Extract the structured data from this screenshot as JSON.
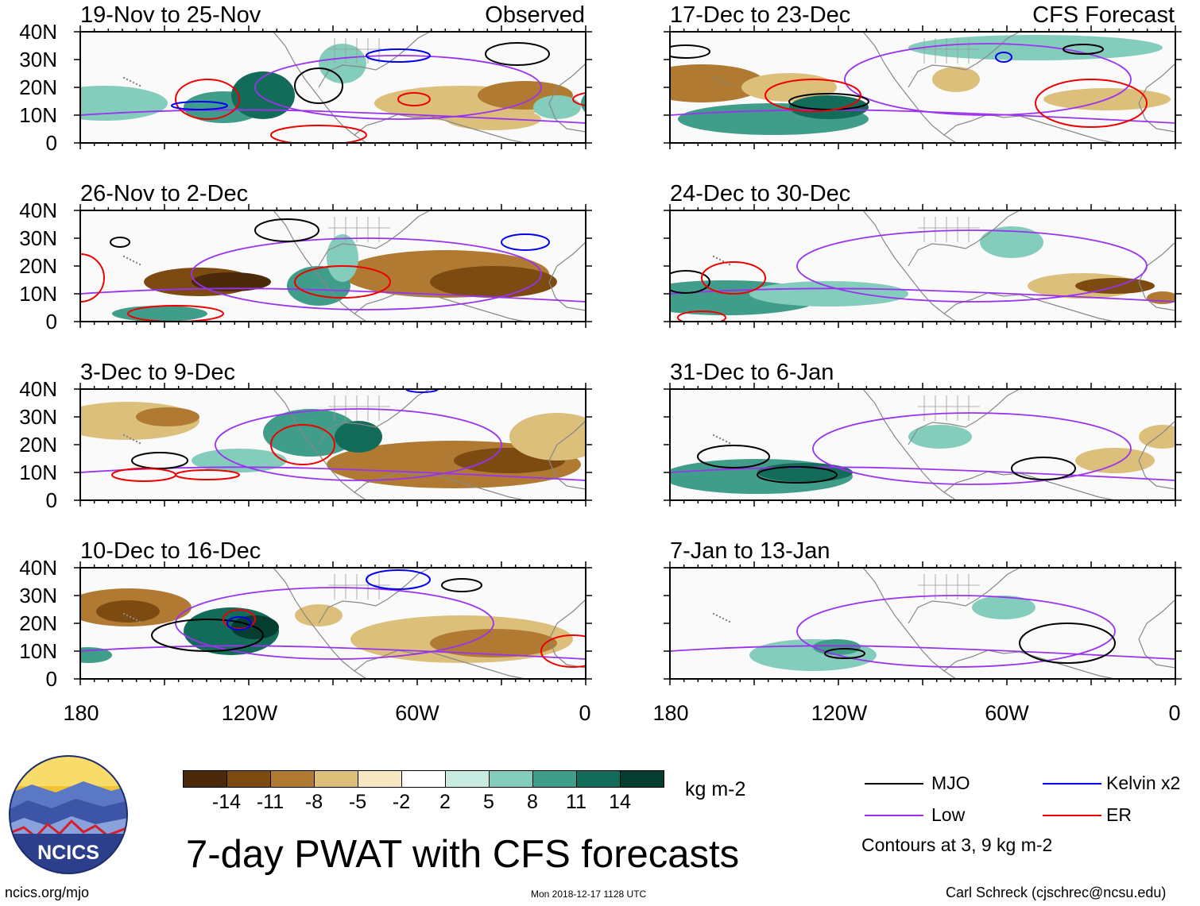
{
  "figure": {
    "title": "7-day PWAT with CFS forecasts",
    "units": "kg m-2",
    "contour_note": "Contours at 3, 9 kg m-2",
    "site": "ncics.org/mjo",
    "timestamp": "Mon 2018-12-17 1128 UTC",
    "author": "Carl Schreck (cjschrec@ncsu.edu)",
    "logo_text": "NCICS"
  },
  "column_headers": {
    "observed": "Observed",
    "forecast": "CFS Forecast"
  },
  "panels": [
    {
      "id": "p1",
      "label": "19-Nov to 25-Nov"
    },
    {
      "id": "p2",
      "label": "26-Nov to 2-Dec"
    },
    {
      "id": "p3",
      "label": "3-Dec to 9-Dec"
    },
    {
      "id": "p4",
      "label": "10-Dec to 16-Dec"
    },
    {
      "id": "p5",
      "label": "17-Dec to 23-Dec"
    },
    {
      "id": "p6",
      "label": "24-Dec to 30-Dec"
    },
    {
      "id": "p7",
      "label": "31-Dec to 6-Jan"
    },
    {
      "id": "p8",
      "label": "7-Jan to 13-Jan"
    }
  ],
  "axes": {
    "lat_labels": [
      "40N",
      "30N",
      "20N",
      "10N",
      "0"
    ],
    "lon_labels": [
      "180",
      "120W",
      "60W",
      "0"
    ]
  },
  "colorbar": {
    "tick_labels": [
      "-14",
      "-11",
      "-8",
      "-5",
      "-2",
      "2",
      "5",
      "8",
      "11",
      "14"
    ],
    "colors": [
      "#4a2a0a",
      "#7d4a12",
      "#b07a32",
      "#dcbf7a",
      "#f6e7c2",
      "#ffffff",
      "#c8ece2",
      "#84cdbd",
      "#3f9d8a",
      "#136b5a",
      "#053d30"
    ]
  },
  "legend": [
    {
      "label": "MJO",
      "color": "#000000"
    },
    {
      "label": "Kelvin x2",
      "color": "#0000ee"
    },
    {
      "label": "Low",
      "color": "#9933ee"
    },
    {
      "label": "ER",
      "color": "#ee0000"
    }
  ]
}
